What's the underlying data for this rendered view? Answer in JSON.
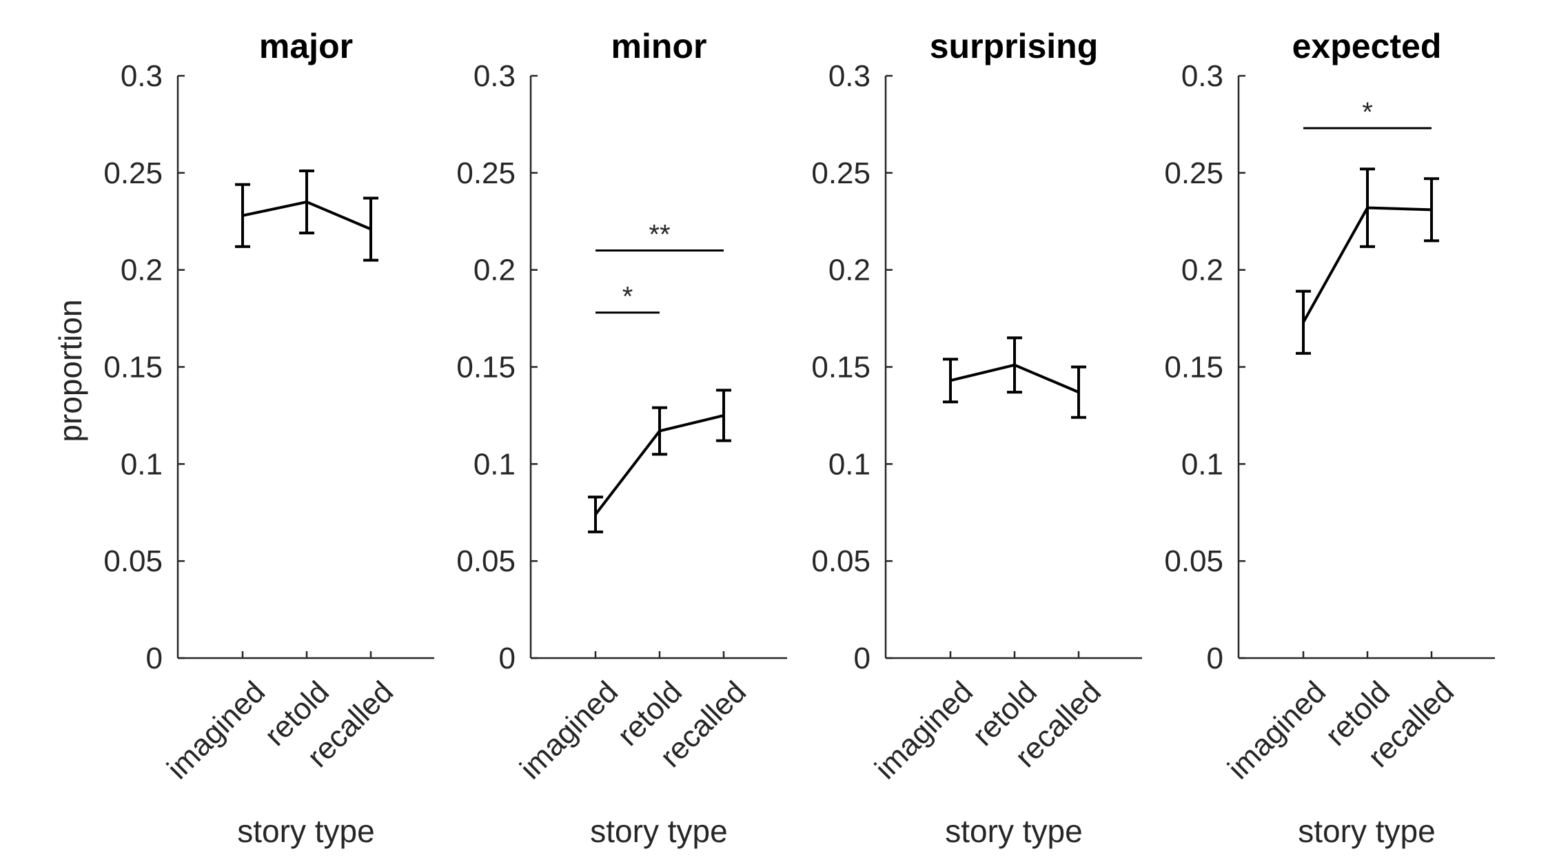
{
  "figure": {
    "ylabel": "proportion"
  },
  "chart_data": [
    {
      "type": "line",
      "title": "major",
      "xlabel": "story type",
      "ylabel": "proportion",
      "categories": [
        "imagined",
        "retold",
        "recalled"
      ],
      "values": [
        0.228,
        0.235,
        0.221
      ],
      "error": [
        0.016,
        0.016,
        0.016
      ],
      "ylim": [
        0,
        0.3
      ],
      "yticks": [
        "0",
        "0.05",
        "0.1",
        "0.15",
        "0.2",
        "0.25",
        "0.3"
      ],
      "significance": []
    },
    {
      "type": "line",
      "title": "minor",
      "xlabel": "story type",
      "ylabel": "",
      "categories": [
        "imagined",
        "retold",
        "recalled"
      ],
      "values": [
        0.074,
        0.117,
        0.125
      ],
      "error": [
        0.009,
        0.012,
        0.013
      ],
      "ylim": [
        0,
        0.3
      ],
      "yticks": [
        "0",
        "0.05",
        "0.1",
        "0.15",
        "0.2",
        "0.25",
        "0.3"
      ],
      "significance": [
        {
          "from": 0,
          "to": 2,
          "y": 0.21,
          "label": "**"
        },
        {
          "from": 0,
          "to": 1,
          "y": 0.178,
          "label": "*"
        }
      ]
    },
    {
      "type": "line",
      "title": "surprising",
      "xlabel": "story type",
      "ylabel": "",
      "categories": [
        "imagined",
        "retold",
        "recalled"
      ],
      "values": [
        0.143,
        0.151,
        0.137
      ],
      "error": [
        0.011,
        0.014,
        0.013
      ],
      "ylim": [
        0,
        0.3
      ],
      "yticks": [
        "0",
        "0.05",
        "0.1",
        "0.15",
        "0.2",
        "0.25",
        "0.3"
      ],
      "significance": []
    },
    {
      "type": "line",
      "title": "expected",
      "xlabel": "story type",
      "ylabel": "",
      "categories": [
        "imagined",
        "retold",
        "recalled"
      ],
      "values": [
        0.173,
        0.232,
        0.231
      ],
      "error": [
        0.016,
        0.02,
        0.016
      ],
      "ylim": [
        0,
        0.3
      ],
      "yticks": [
        "0",
        "0.05",
        "0.1",
        "0.15",
        "0.2",
        "0.25",
        "0.3"
      ],
      "significance": [
        {
          "from": 0,
          "to": 2,
          "y": 0.273,
          "label": "*"
        }
      ]
    }
  ]
}
